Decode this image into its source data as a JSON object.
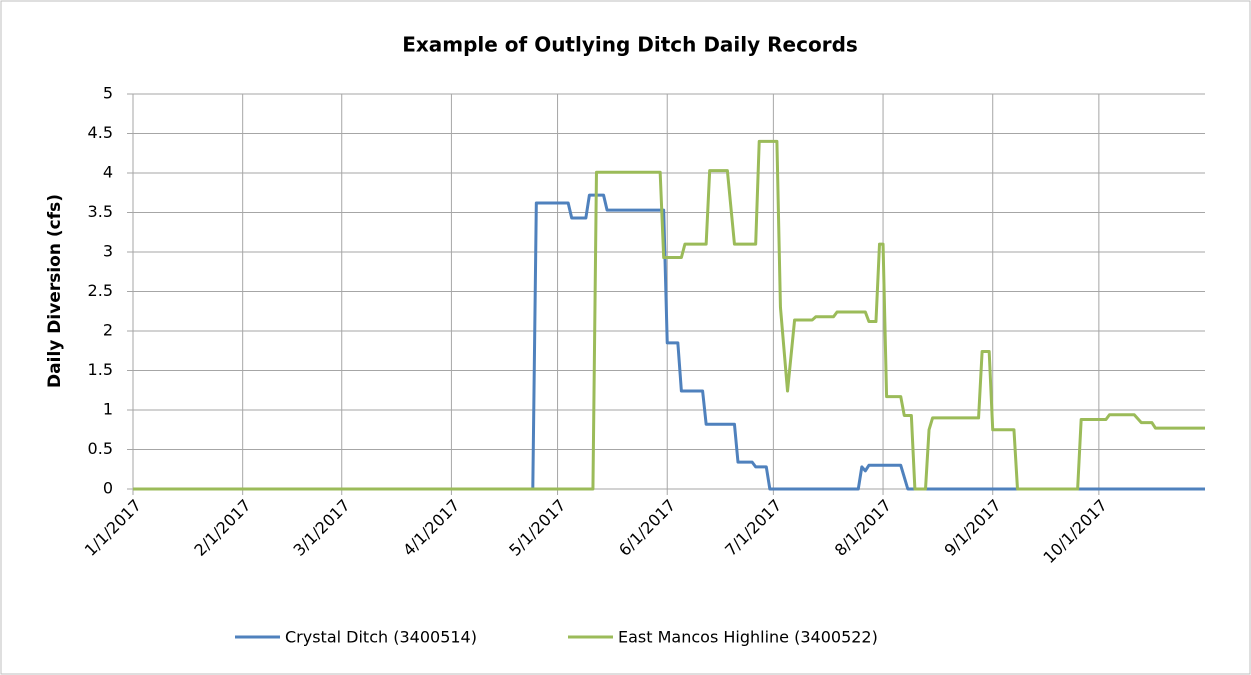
{
  "chart_data": {
    "type": "line",
    "title": "Example of Outlying Ditch Daily Records",
    "y_label": "Daily Diversion (cfs)",
    "xlim": [
      "1/1/2017",
      "10/31/2017"
    ],
    "xticks": [
      "1/1/2017",
      "2/1/2017",
      "3/1/2017",
      "4/1/2017",
      "5/1/2017",
      "6/1/2017",
      "7/1/2017",
      "8/1/2017",
      "9/1/2017",
      "10/1/2017"
    ],
    "ylim": [
      0,
      5
    ],
    "yticks": [
      0,
      0.5,
      1,
      1.5,
      2,
      2.5,
      3,
      3.5,
      4,
      4.5,
      5
    ],
    "grid": true,
    "legend": "bottom",
    "series": [
      {
        "name": "Crystal Ditch (3400514)",
        "color": "#4f81bd",
        "x": [
          "1/1/2017",
          "4/24/2017",
          "4/25/2017",
          "5/4/2017",
          "5/5/2017",
          "5/9/2017",
          "5/10/2017",
          "5/14/2017",
          "5/15/2017",
          "5/31/2017",
          "6/1/2017",
          "6/4/2017",
          "6/5/2017",
          "6/11/2017",
          "6/12/2017",
          "6/20/2017",
          "6/21/2017",
          "6/25/2017",
          "6/26/2017",
          "6/29/2017",
          "6/30/2017",
          "7/25/2017",
          "7/26/2017",
          "7/27/2017",
          "7/28/2017",
          "8/6/2017",
          "8/8/2017",
          "10/31/2017"
        ],
        "values": [
          0,
          0,
          3.62,
          3.62,
          3.43,
          3.43,
          3.72,
          3.72,
          3.53,
          3.53,
          1.85,
          1.85,
          1.24,
          1.24,
          0.82,
          0.82,
          0.34,
          0.34,
          0.28,
          0.28,
          0,
          0,
          0.28,
          0.23,
          0.3,
          0.3,
          0,
          0
        ]
      },
      {
        "name": "East Mancos Highline (3400522)",
        "color": "#9bbb59",
        "x": [
          "1/1/2017",
          "5/11/2017",
          "5/12/2017",
          "5/30/2017",
          "5/31/2017",
          "6/5/2017",
          "6/6/2017",
          "6/12/2017",
          "6/13/2017",
          "6/18/2017",
          "6/20/2017",
          "6/26/2017",
          "6/27/2017",
          "7/2/2017",
          "7/3/2017",
          "7/5/2017",
          "7/7/2017",
          "7/12/2017",
          "7/13/2017",
          "7/18/2017",
          "7/19/2017",
          "7/27/2017",
          "7/28/2017",
          "7/30/2017",
          "7/31/2017",
          "8/1/2017",
          "8/2/2017",
          "8/6/2017",
          "8/7/2017",
          "8/9/2017",
          "8/10/2017",
          "8/13/2017",
          "8/14/2017",
          "8/15/2017",
          "8/28/2017",
          "8/29/2017",
          "8/31/2017",
          "9/1/2017",
          "9/7/2017",
          "9/8/2017",
          "9/25/2017",
          "9/26/2017",
          "10/3/2017",
          "10/4/2017",
          "10/11/2017",
          "10/13/2017",
          "10/16/2017",
          "10/17/2017",
          "10/31/2017"
        ],
        "values": [
          0,
          0,
          4.01,
          4.01,
          2.93,
          2.93,
          3.1,
          3.1,
          4.03,
          4.03,
          3.1,
          3.1,
          4.4,
          4.4,
          2.3,
          1.24,
          2.14,
          2.14,
          2.18,
          2.18,
          2.24,
          2.24,
          2.12,
          2.12,
          3.1,
          3.1,
          1.17,
          1.17,
          0.93,
          0.93,
          0,
          0,
          0.75,
          0.9,
          0.9,
          1.74,
          1.74,
          0.75,
          0.75,
          0,
          0,
          0.88,
          0.88,
          0.94,
          0.94,
          0.84,
          0.84,
          0.77,
          0.77
        ]
      }
    ]
  }
}
